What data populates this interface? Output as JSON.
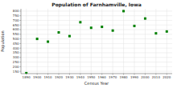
{
  "chart_data": {
    "type": "scatter",
    "title": "Population of Farnhamville, Iowa",
    "xlabel": "Census Year",
    "ylabel": "Population",
    "x": [
      1890,
      1900,
      1910,
      1920,
      1930,
      1940,
      1950,
      1960,
      1970,
      1980,
      1990,
      2000,
      2010,
      2020
    ],
    "values": [
      130,
      500,
      470,
      570,
      530,
      680,
      620,
      630,
      590,
      800,
      640,
      720,
      560,
      580
    ],
    "color": "#008000",
    "marker": "square",
    "xlim": [
      1885,
      2025
    ],
    "ylim": [
      125,
      825
    ],
    "xticks": [
      1890,
      1900,
      1910,
      1920,
      1930,
      1940,
      1950,
      1960,
      1970,
      1980,
      1990,
      2000,
      2010,
      2020
    ],
    "yticks": [
      150,
      200,
      250,
      300,
      350,
      400,
      450,
      500,
      550,
      600,
      650,
      700,
      750,
      800
    ],
    "grid": true
  }
}
